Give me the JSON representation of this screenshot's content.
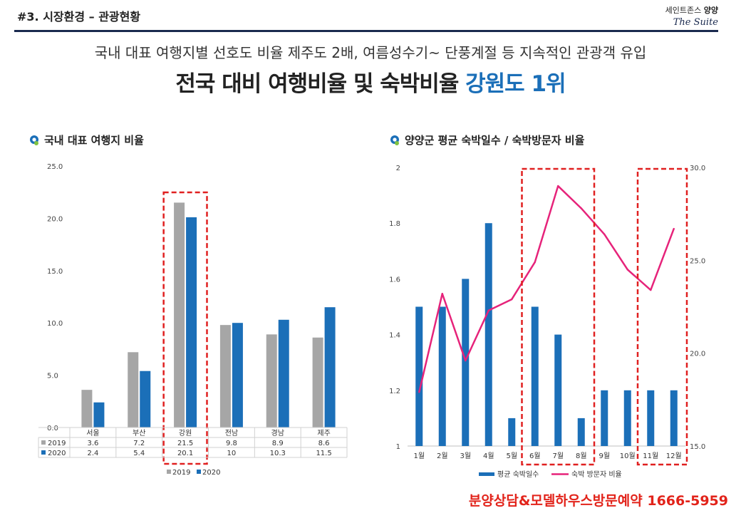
{
  "header": {
    "section_title": "#3. 시장환경 – 관광현황",
    "brand_line_prefix": "세인트존스",
    "brand_line_bold": "양양",
    "brand_sub": "The Suite"
  },
  "subtitle": "국내 대표 여행지별 선호도 비율 제주도 2배, 여름성수기~ 단풍계절 등 지속적인 관광객 유입",
  "headline": {
    "main": "전국 대비 여행비율 및 숙박비율 ",
    "highlight": "강원도 1위"
  },
  "left_chart_title": "국내 대표 여행지 비율",
  "right_chart_title": "양양군 평균 숙박일수 / 숙박방문자 비율",
  "footer": "분양상담&모델하우스방문예약 1666-5959",
  "colors": {
    "gray": "#a6a6a6",
    "blue": "#1b6fb8",
    "pink": "#e6237a",
    "red_dash": "#e02020",
    "navy": "#1a2a4f"
  },
  "chart_data": [
    {
      "type": "bar",
      "categories": [
        "서울",
        "부산",
        "강원",
        "전남",
        "경남",
        "제주"
      ],
      "series": [
        {
          "name": "2019",
          "values": [
            3.6,
            7.2,
            21.5,
            9.8,
            8.9,
            8.6
          ],
          "labels": [
            "3.6",
            "7.2",
            "21.5",
            "9.8",
            "8.9",
            "8.6"
          ]
        },
        {
          "name": "2020",
          "values": [
            2.4,
            5.4,
            20.1,
            10,
            10.3,
            11.5
          ],
          "labels": [
            "2.4",
            "5.4",
            "20.1",
            "10",
            "10.3",
            "11.5"
          ]
        }
      ],
      "ylim": [
        0,
        25
      ],
      "yticks": [
        "0.0",
        "5.0",
        "10.0",
        "15.0",
        "20.0",
        "25.0"
      ],
      "legend": [
        "2019",
        "2020"
      ],
      "legend_position": "bottom",
      "data_table": true,
      "highlight_category": "강원"
    },
    {
      "type": "bar",
      "categories": [
        "1월",
        "2월",
        "3월",
        "4월",
        "5월",
        "6월",
        "7월",
        "8월",
        "9월",
        "10월",
        "11월",
        "12월"
      ],
      "series": [
        {
          "name": "평균 숙박일수",
          "type": "bar",
          "axis": "left",
          "values": [
            1.5,
            1.5,
            1.6,
            1.8,
            1.1,
            1.5,
            1.4,
            1.1,
            1.2,
            1.2,
            1.2,
            1.2
          ]
        },
        {
          "name": "숙박 방문자 비율",
          "type": "line",
          "axis": "right",
          "values": [
            17.9,
            23.2,
            19.6,
            22.3,
            22.9,
            24.9,
            29.0,
            27.8,
            26.4,
            24.5,
            23.4,
            26.7
          ]
        }
      ],
      "ylim_left": [
        1,
        2
      ],
      "yticks_left": [
        "1",
        "1.2",
        "1.4",
        "1.6",
        "1.8",
        "2"
      ],
      "ylim_right": [
        15,
        30
      ],
      "yticks_right": [
        "15.0",
        "20.0",
        "25.0",
        "30.0"
      ],
      "legend": [
        "평균 숙박일수",
        "숙박 방문자 비율"
      ],
      "legend_position": "bottom",
      "highlight_ranges": [
        [
          "6월",
          "8월"
        ],
        [
          "11월",
          "12월"
        ]
      ]
    }
  ]
}
